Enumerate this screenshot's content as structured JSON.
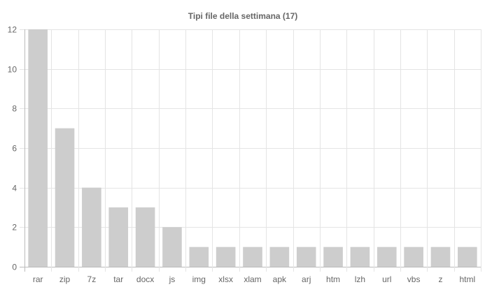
{
  "chart_data": {
    "type": "bar",
    "title": "Tipi file della settimana (17)",
    "xlabel": "",
    "ylabel": "",
    "categories": [
      "rar",
      "zip",
      "7z",
      "tar",
      "docx",
      "js",
      "img",
      "xlsx",
      "xlam",
      "apk",
      "arj",
      "htm",
      "lzh",
      "url",
      "vbs",
      "z",
      "html"
    ],
    "values": [
      12,
      7,
      4,
      3,
      3,
      2,
      1,
      1,
      1,
      1,
      1,
      1,
      1,
      1,
      1,
      1,
      1
    ],
    "ylim": [
      0,
      12
    ],
    "yticks": [
      "0",
      "2",
      "4",
      "6",
      "8",
      "10",
      "12"
    ],
    "grid": true,
    "legend": "none",
    "bar_color": "#cdcdcd",
    "grid_color": "#e4e4e4"
  }
}
